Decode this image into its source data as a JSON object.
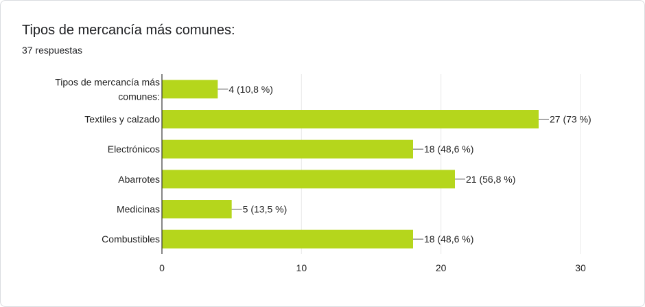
{
  "header": {
    "title": "Tipos de mercancía más comunes:",
    "responses": "37 respuestas"
  },
  "colors": {
    "bar": "#b5d61c",
    "grid": "#e8e8e8",
    "axis": "#333333",
    "leader": "#555555",
    "text": "#212121"
  },
  "chart_data": {
    "type": "bar",
    "orientation": "horizontal",
    "categories": [
      [
        "Tipos de mercancía más",
        "comunes:"
      ],
      [
        "Textiles y calzado"
      ],
      [
        "Electrónicos"
      ],
      [
        "Abarrotes"
      ],
      [
        "Medicinas"
      ],
      [
        "Combustibles"
      ]
    ],
    "values": [
      4,
      27,
      18,
      21,
      5,
      18
    ],
    "data_labels": [
      "4 (10,8 %)",
      "27 (73 %)",
      "18 (48,6 %)",
      "21 (56,8 %)",
      "5 (13,5 %)",
      "18 (48,6 %)"
    ],
    "xlim": [
      0,
      30
    ],
    "xticks": [
      0,
      10,
      20,
      30
    ],
    "grid": true,
    "title": "Tipos de mercancía más comunes:"
  }
}
